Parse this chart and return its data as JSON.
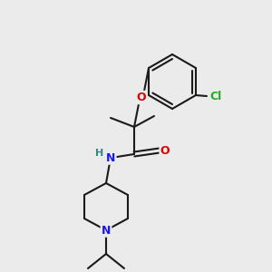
{
  "background_color": "#ebebeb",
  "bond_color": "#1a1a1a",
  "bond_width": 1.5,
  "atom_colors": {
    "O": "#dd0000",
    "N": "#1a1aee",
    "Cl": "#22aa22",
    "H": "#338888",
    "C": "#1a1a1a"
  },
  "figsize": [
    3.0,
    3.0
  ],
  "dpi": 100
}
